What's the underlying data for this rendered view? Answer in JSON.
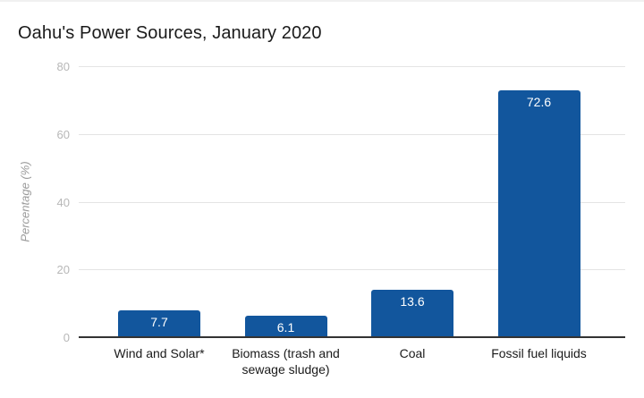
{
  "page": {
    "background": "#ffffff"
  },
  "chart_data": {
    "type": "bar",
    "title": "Oahu's Power Sources, January 2020",
    "xlabel": "",
    "ylabel": "Percentage (%)",
    "categories": [
      "Wind and Solar*",
      "Biomass (trash and sewage sludge)",
      "Coal",
      "Fossil fuel liquids"
    ],
    "values": [
      7.7,
      6.1,
      13.6,
      72.6
    ],
    "value_labels": [
      "7.7",
      "6.1",
      "13.6",
      "72.6"
    ],
    "ylim": [
      0,
      80
    ],
    "yticks": [
      0,
      20,
      40,
      60,
      80
    ],
    "grid": true,
    "legend_position": "none",
    "colors": {
      "bar": "#12569d",
      "value_label": "#ffffff",
      "gridline": "#e4e4e4",
      "baseline": "#333333",
      "tick_label": "#b7b7b7",
      "axis_title": "#9a9a9a",
      "category_label": "#1a1a1a",
      "title": "#1a1a1a"
    }
  }
}
